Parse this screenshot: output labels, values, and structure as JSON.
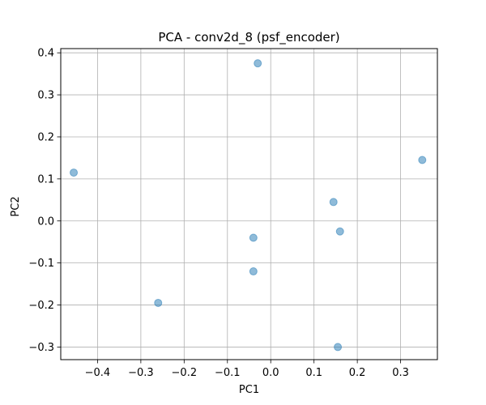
{
  "chart_data": {
    "type": "scatter",
    "title": "PCA - conv2d_8 (psf_encoder)",
    "xlabel": "PC1",
    "ylabel": "PC2",
    "xlim": [
      -0.485,
      0.385
    ],
    "ylim": [
      -0.33,
      0.41
    ],
    "grid": true,
    "xticks": [
      -0.4,
      -0.3,
      -0.2,
      -0.1,
      0.0,
      0.1,
      0.2,
      0.3
    ],
    "xtick_labels": [
      "−0.4",
      "−0.3",
      "−0.2",
      "−0.1",
      "0.0",
      "0.1",
      "0.2",
      "0.3"
    ],
    "yticks": [
      -0.3,
      -0.2,
      -0.1,
      0.0,
      0.1,
      0.2,
      0.3,
      0.4
    ],
    "ytick_labels": [
      "−0.3",
      "−0.2",
      "−0.1",
      "0.0",
      "0.1",
      "0.2",
      "0.3",
      "0.4"
    ],
    "marker_color": "#1f77b4",
    "marker_opacity": 0.5,
    "series": [
      {
        "points": [
          {
            "x": -0.455,
            "y": 0.115
          },
          {
            "x": -0.26,
            "y": -0.195
          },
          {
            "x": -0.03,
            "y": 0.375
          },
          {
            "x": -0.04,
            "y": -0.04
          },
          {
            "x": -0.04,
            "y": -0.12
          },
          {
            "x": 0.145,
            "y": 0.045
          },
          {
            "x": 0.16,
            "y": -0.025
          },
          {
            "x": 0.155,
            "y": -0.3
          },
          {
            "x": 0.35,
            "y": 0.145
          }
        ]
      }
    ]
  }
}
